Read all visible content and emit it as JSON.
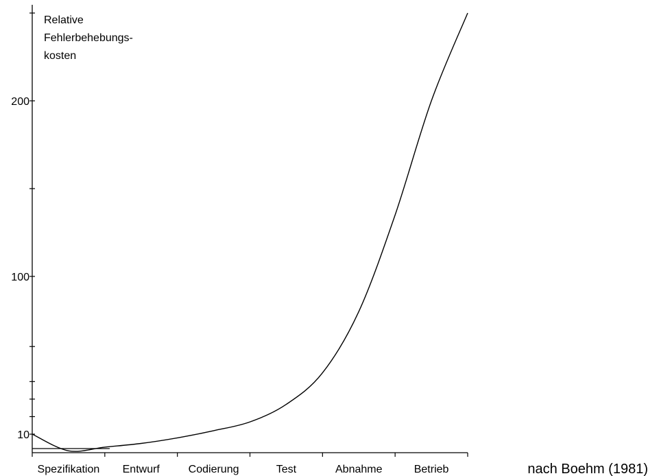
{
  "chart_data": {
    "type": "line",
    "title": "",
    "ylabel_lines": [
      "Relative",
      "Fehlerbehebungs-",
      "kosten"
    ],
    "xlabel": "",
    "categories": [
      "Spezifikation",
      "Entwurf",
      "Codierung",
      "Test",
      "Abnahme",
      "Betrieb"
    ],
    "y_ticks": [
      10,
      100,
      200
    ],
    "ylim": [
      10,
      250
    ],
    "grid": false,
    "legend": "none",
    "series": [
      {
        "x": [
          0,
          0.5,
          1,
          1.5,
          2,
          2.5,
          3,
          3.5,
          4,
          4.5,
          5,
          5.5,
          6
        ],
        "values": [
          10,
          1,
          3,
          5,
          8,
          12,
          17,
          27,
          45,
          80,
          135,
          200,
          250
        ]
      }
    ],
    "colors": {
      "line": "#000000",
      "axis": "#000000"
    }
  },
  "attribution": "nach Boehm (1981)"
}
